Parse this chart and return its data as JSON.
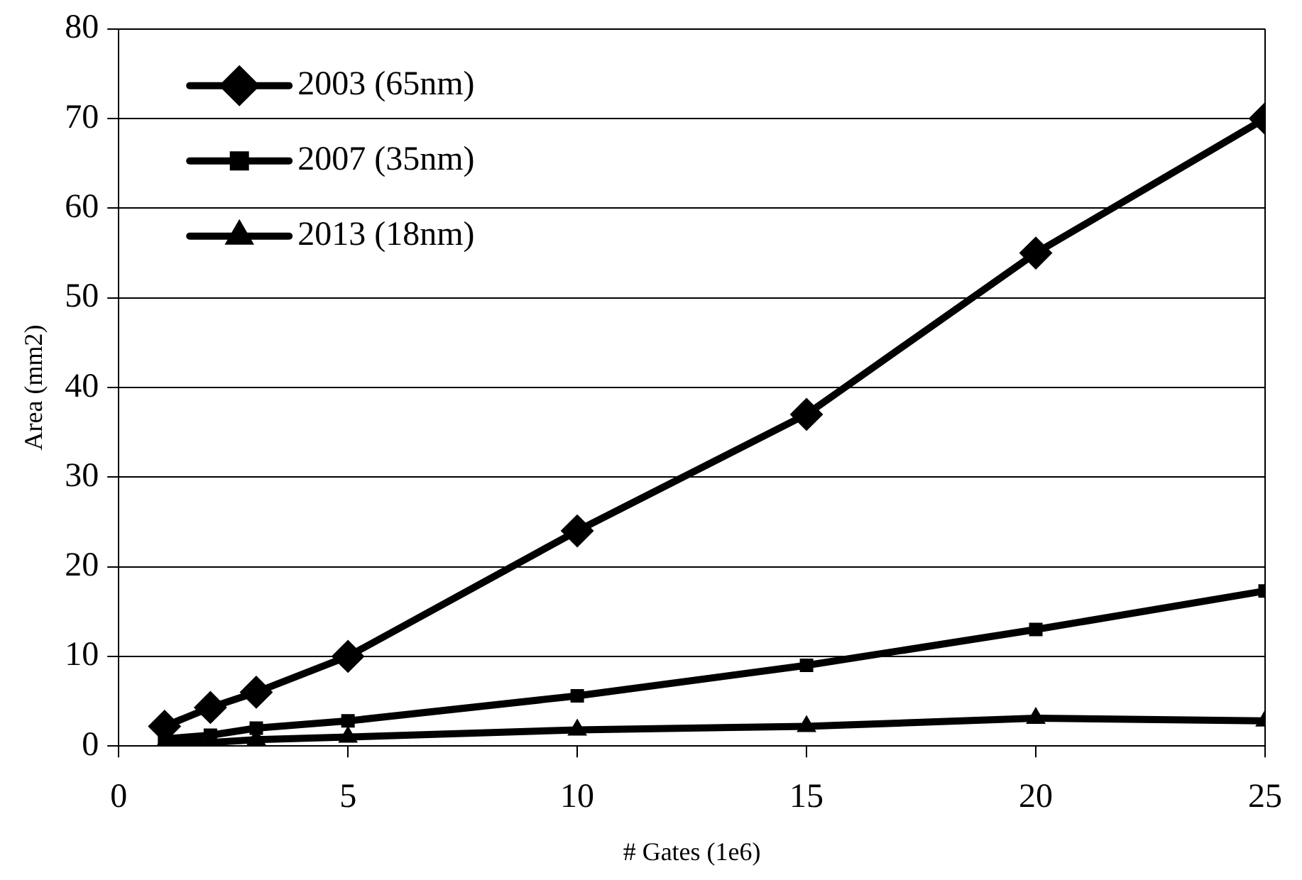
{
  "chart_data": {
    "type": "line",
    "xlabel": "# Gates (1e6)",
    "ylabel": "Area (mm2)",
    "x": [
      1,
      2,
      3,
      5,
      10,
      15,
      20,
      25
    ],
    "series": [
      {
        "name": "2003 (65nm)",
        "color": "#000000",
        "marker": "diamond",
        "values": [
          2.2,
          4.3,
          6,
          10,
          24,
          37,
          55,
          70
        ]
      },
      {
        "name": "2007 (35nm)",
        "color": "#000000",
        "marker": "square",
        "values": [
          0.8,
          1.2,
          2,
          2.8,
          5.6,
          9,
          13,
          17.3
        ]
      },
      {
        "name": "2013 (18nm)",
        "color": "#000000",
        "marker": "triangle",
        "values": [
          0.3,
          0.4,
          0.7,
          1,
          1.8,
          2.2,
          3.1,
          2.8
        ]
      }
    ],
    "xlim": [
      0,
      25
    ],
    "xticks": [
      0,
      5,
      10,
      15,
      20,
      25
    ],
    "ylim": [
      0,
      80
    ],
    "yticks": [
      0,
      10,
      20,
      30,
      40,
      50,
      60,
      70,
      80
    ],
    "grid": "y",
    "legend": "top left",
    "line_style": "solid"
  }
}
